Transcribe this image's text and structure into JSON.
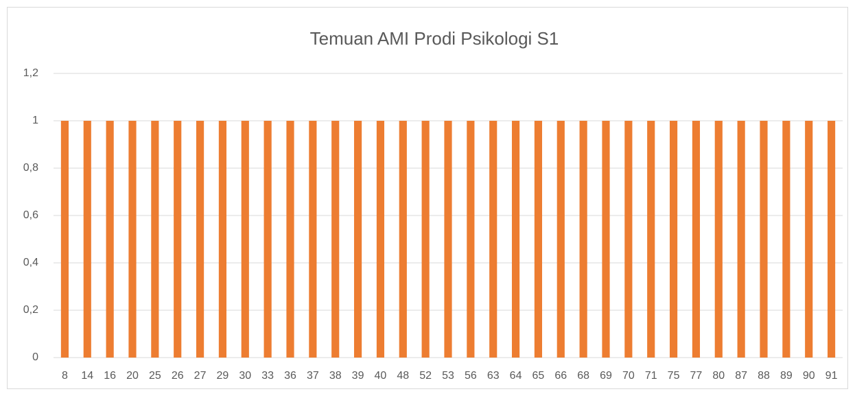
{
  "chart_data": {
    "type": "bar",
    "title": "Temuan AMI Prodi Psikologi S1",
    "categories": [
      "8",
      "14",
      "16",
      "20",
      "25",
      "26",
      "27",
      "29",
      "30",
      "33",
      "36",
      "37",
      "38",
      "39",
      "40",
      "48",
      "52",
      "53",
      "56",
      "63",
      "64",
      "65",
      "66",
      "68",
      "69",
      "70",
      "71",
      "75",
      "77",
      "80",
      "87",
      "88",
      "89",
      "90",
      "91"
    ],
    "values": [
      1,
      1,
      1,
      1,
      1,
      1,
      1,
      1,
      1,
      1,
      1,
      1,
      1,
      1,
      1,
      1,
      1,
      1,
      1,
      1,
      1,
      1,
      1,
      1,
      1,
      1,
      1,
      1,
      1,
      1,
      1,
      1,
      1,
      1,
      1
    ],
    "color": "#ed7d31",
    "ylim": [
      0,
      1.2
    ],
    "yticks": [
      0,
      {
        "value": 0.2,
        "label": "0,2"
      },
      {
        "value": 0.4,
        "label": "0,4"
      },
      {
        "value": 0.6,
        "label": "0,6"
      },
      {
        "value": 0.8,
        "label": "0,8"
      },
      1,
      {
        "value": 1.2,
        "label": "1,2"
      }
    ],
    "grid": true
  }
}
